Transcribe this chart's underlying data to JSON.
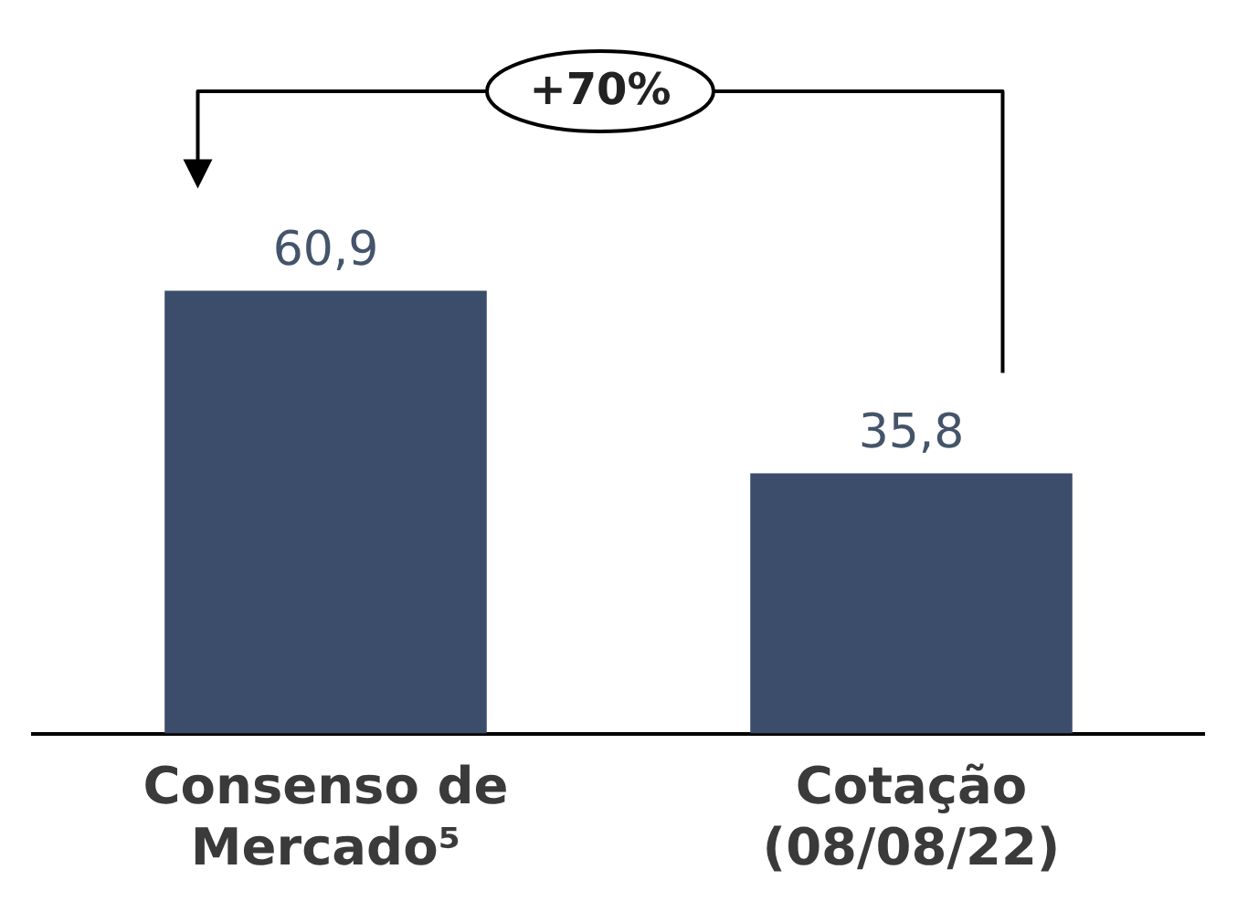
{
  "chart_data": {
    "type": "bar",
    "categories": [
      "Consenso de Mercado⁵",
      "Cotação (08/08/22)"
    ],
    "values": [
      60.9,
      35.8
    ],
    "value_labels": [
      "60,9",
      "35,8"
    ],
    "color": "#3b4d6b",
    "annotations": [
      "+70%"
    ],
    "grid": false,
    "legend": false
  }
}
